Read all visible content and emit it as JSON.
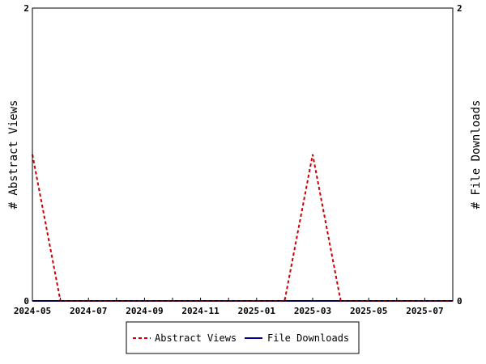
{
  "chart_data": {
    "type": "line",
    "x": [
      "2024-05",
      "2024-06",
      "2024-07",
      "2024-08",
      "2024-09",
      "2024-10",
      "2024-11",
      "2024-12",
      "2025-01",
      "2025-02",
      "2025-03",
      "2025-04",
      "2025-05",
      "2025-06",
      "2025-07",
      "2025-08"
    ],
    "x_tick_labels": [
      "2024-05",
      "2024-07",
      "2024-09",
      "2024-11",
      "2025-01",
      "2025-03",
      "2025-05",
      "2025-07"
    ],
    "series": [
      {
        "name": "Abstract Views",
        "axis": "left",
        "color": "#cc0000",
        "dash": "dashed",
        "values": [
          1,
          0,
          0,
          0,
          0,
          0,
          0,
          0,
          0,
          0,
          1,
          0,
          0,
          0,
          0,
          0
        ]
      },
      {
        "name": "File Downloads",
        "axis": "right",
        "color": "#000099",
        "dash": "solid",
        "values": [
          0,
          0,
          0,
          0,
          0,
          0,
          0,
          0,
          0,
          0,
          0,
          0,
          0,
          0,
          0,
          0
        ]
      }
    ],
    "ylabel_left": "# Abstract Views",
    "ylabel_right": "# File Downloads",
    "ylim_left": [
      0,
      2
    ],
    "ylim_right": [
      0,
      2
    ],
    "y_ticks_left": [
      "0",
      "2"
    ],
    "y_ticks_right": [
      "0",
      "2"
    ],
    "grid": false,
    "legend_position": "bottom"
  }
}
